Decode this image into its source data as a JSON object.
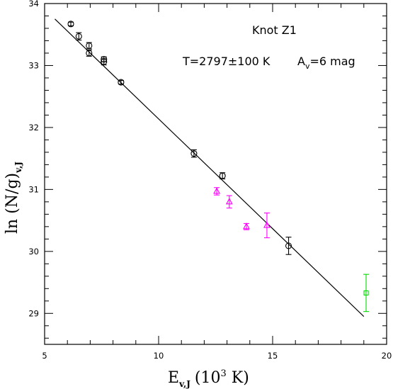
{
  "chart_data": {
    "type": "scatter",
    "xlim": [
      5,
      20
    ],
    "ylim": [
      28.5,
      34
    ],
    "xticks": [
      5,
      10,
      15,
      20
    ],
    "yticks": [
      29,
      30,
      31,
      32,
      33,
      34
    ],
    "xtick_labels": [
      "5",
      "10",
      "15",
      "20"
    ],
    "ytick_labels": [
      "29",
      "30",
      "31",
      "32",
      "33",
      "34"
    ],
    "xlabel": {
      "base": "E",
      "sub": "v,J",
      "unit_open": "(10",
      "unit_sup": "3",
      "unit_close": " K)"
    },
    "ylabel": {
      "base": "ln (N/g)",
      "sub": "v,J"
    },
    "annotations": {
      "knot": "Knot Z1",
      "temp": "T=2797±100 K",
      "av_base": "A",
      "av_sub": "v",
      "av_rest": "=6 mag"
    },
    "fit_line": {
      "x": [
        5.45,
        19.0
      ],
      "y": [
        33.75,
        28.95
      ]
    },
    "series": [
      {
        "marker": "circle",
        "color": "#000000",
        "points": [
          {
            "x": 6.15,
            "y": 33.67,
            "err": 0.03
          },
          {
            "x": 6.5,
            "y": 33.47,
            "err": 0.06
          },
          {
            "x": 6.95,
            "y": 33.32,
            "err": 0.05
          },
          {
            "x": 6.95,
            "y": 33.2,
            "err": 0.05
          },
          {
            "x": 7.6,
            "y": 33.1,
            "err": 0.04
          },
          {
            "x": 7.6,
            "y": 33.06,
            "err": 0.05
          },
          {
            "x": 8.35,
            "y": 32.73,
            "err": 0.03
          },
          {
            "x": 11.55,
            "y": 31.58,
            "err": 0.06
          },
          {
            "x": 12.8,
            "y": 31.22,
            "err": 0.05
          },
          {
            "x": 15.7,
            "y": 30.09,
            "err": 0.14
          }
        ]
      },
      {
        "marker": "triangle",
        "color": "#ff00ff",
        "points": [
          {
            "x": 12.55,
            "y": 30.97,
            "err": 0.06
          },
          {
            "x": 13.1,
            "y": 30.8,
            "err": 0.1
          },
          {
            "x": 13.85,
            "y": 30.4,
            "err": 0.05
          },
          {
            "x": 14.75,
            "y": 30.42,
            "err": 0.2
          }
        ]
      },
      {
        "marker": "square",
        "color": "#00dd00",
        "points": [
          {
            "x": 19.1,
            "y": 29.33,
            "err": 0.3
          }
        ]
      }
    ]
  }
}
